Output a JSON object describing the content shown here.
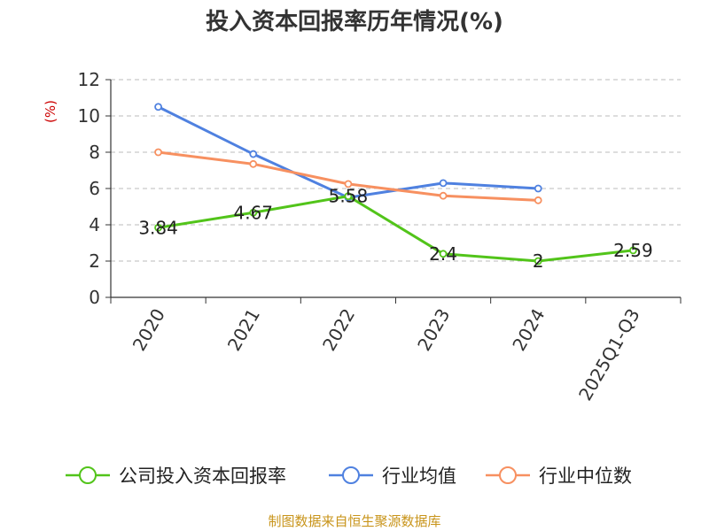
{
  "title": "投入资本回报率历年情况(%)",
  "source": "制图数据来自恒生聚源数据库",
  "colors": {
    "company": "#52c41a",
    "industry_avg": "#4f81e0",
    "industry_median": "#f79060",
    "unit": "#cc0000",
    "source": "#c8941a",
    "axis": "#333333",
    "grid": "#bbbbbb"
  },
  "chart_data": {
    "type": "line",
    "title": "投入资本回报率历年情况(%)",
    "ylabel": "(%)",
    "xlabel": "",
    "categories": [
      "2020",
      "2021",
      "2022",
      "2023",
      "2024",
      "2025Q1-Q3"
    ],
    "ylim": [
      0,
      12
    ],
    "yticks": [
      0,
      2,
      4,
      6,
      8,
      10,
      12
    ],
    "grid": true,
    "legend_position": "bottom",
    "series": [
      {
        "name": "公司投入资本回报率",
        "key": "company",
        "values": [
          3.84,
          4.67,
          5.58,
          2.4,
          2,
          2.59
        ],
        "labels": [
          "3.84",
          "4.67",
          "5.58",
          "2.4",
          "2",
          "2.59"
        ]
      },
      {
        "name": "行业均值",
        "key": "industry_avg",
        "values": [
          10.5,
          7.9,
          5.5,
          6.3,
          6.0,
          null
        ]
      },
      {
        "name": "行业中位数",
        "key": "industry_median",
        "values": [
          8.0,
          7.35,
          6.25,
          5.6,
          5.35,
          null
        ]
      }
    ]
  }
}
